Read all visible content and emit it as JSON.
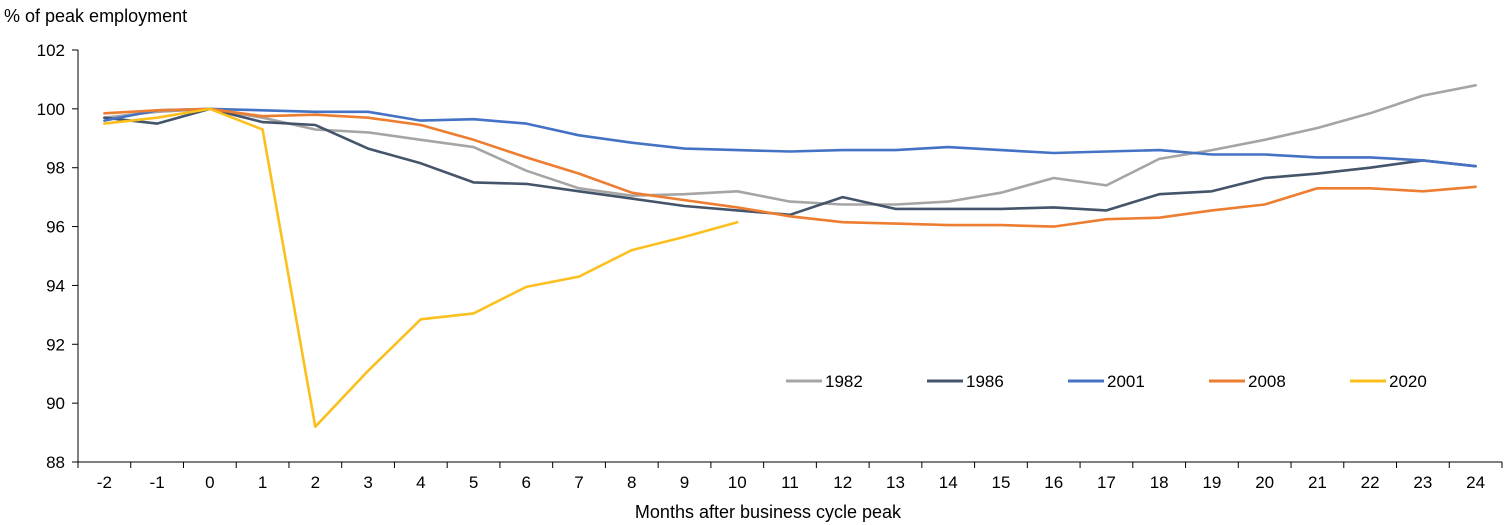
{
  "chart_data": {
    "type": "line",
    "title": "",
    "ylabel": "% of peak employment",
    "xlabel": "Months after business cycle peak",
    "x": [
      -2,
      -1,
      0,
      1,
      2,
      3,
      4,
      5,
      6,
      7,
      8,
      9,
      10,
      11,
      12,
      13,
      14,
      15,
      16,
      17,
      18,
      19,
      20,
      21,
      22,
      23,
      24
    ],
    "x_tick_labels": [
      "-2",
      "-1",
      "0",
      "1",
      "2",
      "3",
      "4",
      "5",
      "6",
      "7",
      "8",
      "9",
      "10",
      "11",
      "12",
      "13",
      "14",
      "15",
      "16",
      "17",
      "18",
      "19",
      "20",
      "21",
      "22",
      "23",
      "24"
    ],
    "ylim": [
      88,
      102
    ],
    "y_ticks": [
      88,
      90,
      92,
      94,
      96,
      98,
      100,
      102
    ],
    "y_tick_labels": [
      "88",
      "90",
      "92",
      "94",
      "96",
      "98",
      "100",
      "102"
    ],
    "grid": false,
    "legend_position": "bottom-right",
    "series": [
      {
        "name": "1982",
        "color": "#a5a5a5",
        "values": [
          99.7,
          99.9,
          100.0,
          99.7,
          99.3,
          99.2,
          98.95,
          98.7,
          97.9,
          97.3,
          97.05,
          97.1,
          97.2,
          96.85,
          96.75,
          96.75,
          96.85,
          97.15,
          97.65,
          97.4,
          98.3,
          98.6,
          98.95,
          99.35,
          99.85,
          100.45,
          100.8
        ]
      },
      {
        "name": "1986",
        "color": "#44546a",
        "values": [
          99.7,
          99.5,
          100.0,
          99.55,
          99.45,
          98.65,
          98.15,
          97.5,
          97.45,
          97.2,
          96.95,
          96.7,
          96.55,
          96.4,
          97.0,
          96.6,
          96.6,
          96.6,
          96.65,
          96.55,
          97.1,
          97.2,
          97.65,
          97.8,
          98.0,
          98.25,
          98.05
        ]
      },
      {
        "name": "2001",
        "color": "#4472c4",
        "values": [
          99.6,
          99.95,
          100.0,
          99.95,
          99.9,
          99.9,
          99.6,
          99.65,
          99.5,
          99.1,
          98.85,
          98.65,
          98.6,
          98.55,
          98.6,
          98.6,
          98.7,
          98.6,
          98.5,
          98.55,
          98.6,
          98.45,
          98.45,
          98.35,
          98.35,
          98.25,
          98.05
        ]
      },
      {
        "name": "2008",
        "color": "#ed7d31",
        "values": [
          99.85,
          99.95,
          100.0,
          99.75,
          99.8,
          99.7,
          99.45,
          98.95,
          98.35,
          97.8,
          97.15,
          96.9,
          96.65,
          96.35,
          96.15,
          96.1,
          96.05,
          96.05,
          96.0,
          96.25,
          96.3,
          96.55,
          96.75,
          97.3,
          97.3,
          97.2,
          97.35
        ]
      },
      {
        "name": "2020",
        "color": "#fbbf1e",
        "values": [
          99.5,
          99.7,
          100.0,
          99.3,
          89.2,
          91.1,
          92.85,
          93.05,
          93.95,
          94.3,
          95.2,
          95.65,
          96.15,
          null,
          null,
          null,
          null,
          null,
          null,
          null,
          null,
          null,
          null,
          null,
          null,
          null,
          null
        ]
      }
    ]
  }
}
